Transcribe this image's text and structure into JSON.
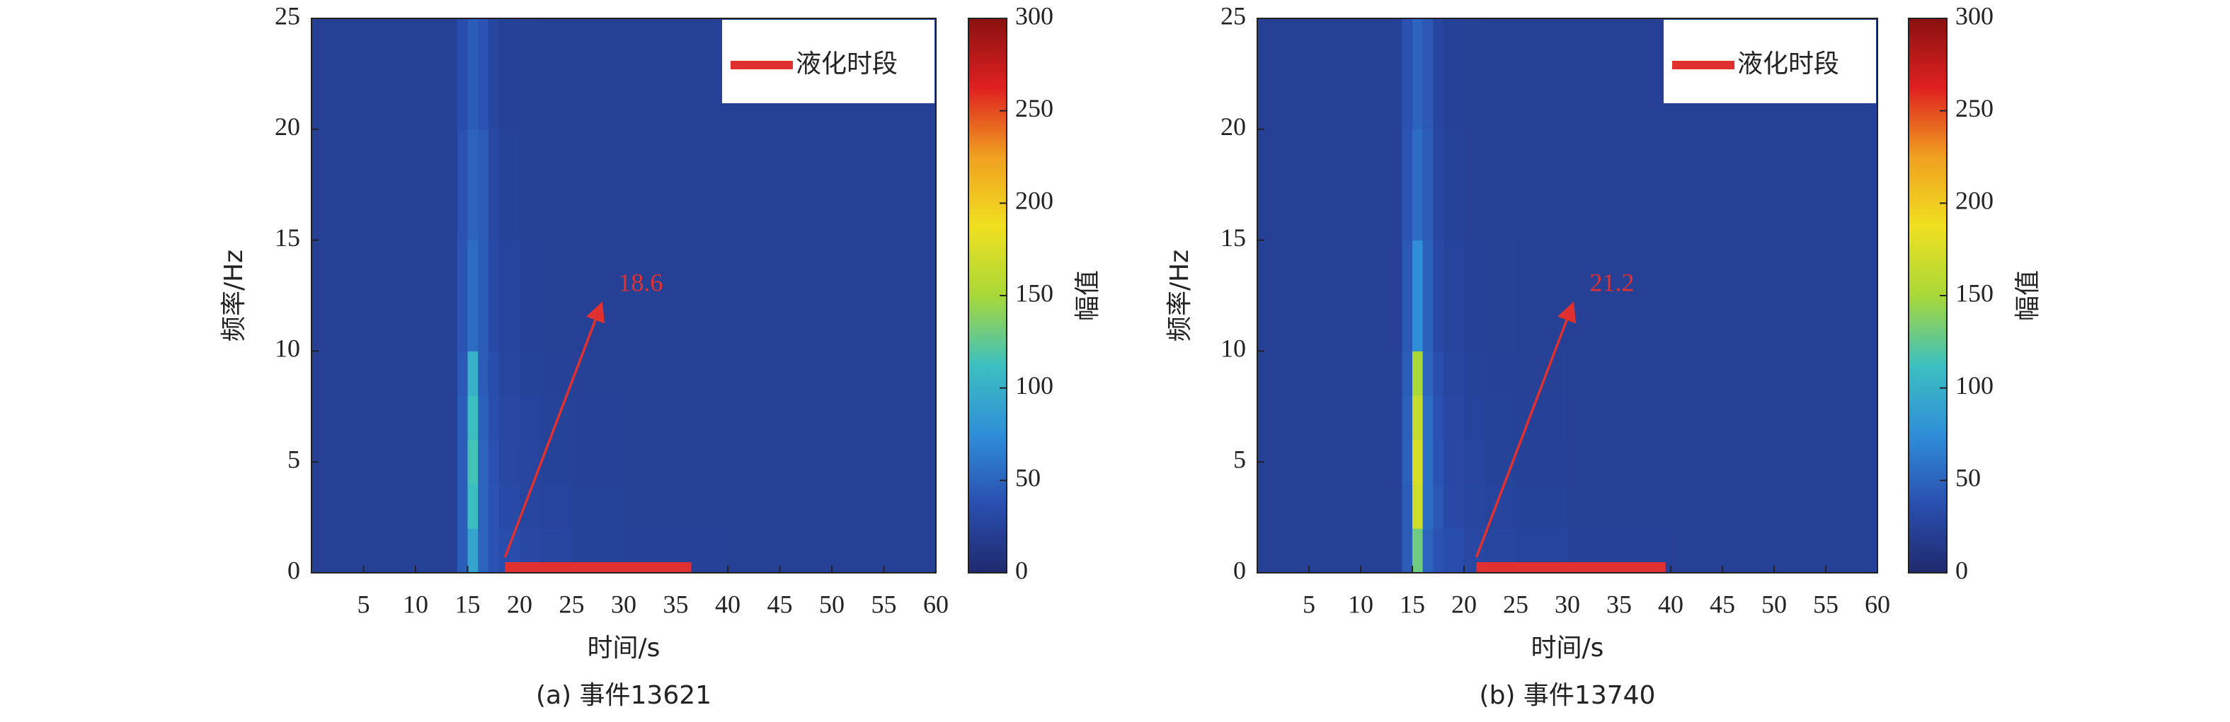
{
  "chart_data": [
    {
      "type": "heatmap",
      "caption": "(a) 事件13621",
      "xlabel": "时间/s",
      "ylabel": "频率/Hz",
      "xlim": [
        0,
        60
      ],
      "ylim": [
        0,
        25
      ],
      "xticks": [
        5,
        10,
        15,
        20,
        25,
        30,
        35,
        40,
        45,
        50,
        55,
        60
      ],
      "yticks": [
        0,
        5,
        10,
        15,
        20,
        25
      ],
      "x_edges": [
        0,
        14,
        15,
        16,
        17,
        18,
        20,
        22,
        25,
        30,
        40,
        60
      ],
      "y_edges": [
        0,
        2,
        4,
        6,
        8,
        10,
        15,
        20,
        25
      ],
      "z": [
        [
          22,
          45,
          90,
          50,
          40,
          35,
          30,
          28,
          25,
          24,
          22
        ],
        [
          22,
          45,
          110,
          50,
          40,
          32,
          28,
          26,
          25,
          23,
          22
        ],
        [
          22,
          45,
          115,
          50,
          38,
          30,
          27,
          25,
          24,
          23,
          22
        ],
        [
          22,
          45,
          110,
          48,
          36,
          30,
          26,
          25,
          24,
          22,
          22
        ],
        [
          22,
          42,
          100,
          45,
          35,
          28,
          25,
          24,
          23,
          22,
          22
        ],
        [
          22,
          40,
          55,
          45,
          32,
          26,
          24,
          23,
          22,
          22,
          22
        ],
        [
          22,
          38,
          50,
          45,
          30,
          25,
          23,
          22,
          22,
          22,
          22
        ],
        [
          22,
          35,
          45,
          40,
          28,
          24,
          23,
          22,
          22,
          22,
          22
        ]
      ],
      "colormap": [
        "#1f2a6e",
        "#2a4fb0",
        "#2f8fd8",
        "#3cc0c0",
        "#a8d838",
        "#f0e020",
        "#f0a020",
        "#e02020",
        "#8a1010"
      ],
      "colorbar": {
        "label": "幅值",
        "lim": [
          0,
          300
        ],
        "ticks": [
          0,
          50,
          100,
          150,
          200,
          250,
          300
        ]
      },
      "legend": {
        "label": "液化时段",
        "color": "#e03030",
        "loc": "upper right"
      },
      "liquefaction_start": {
        "value": 18.6,
        "label": "18.6"
      },
      "liquefaction_end": 36.5
    },
    {
      "type": "heatmap",
      "caption": "(b) 事件13740",
      "xlabel": "时间/s",
      "ylabel": "频率/Hz",
      "xlim": [
        0,
        60
      ],
      "ylim": [
        0,
        25
      ],
      "xticks": [
        5,
        10,
        15,
        20,
        25,
        30,
        35,
        40,
        45,
        50,
        55,
        60
      ],
      "yticks": [
        0,
        5,
        10,
        15,
        20,
        25
      ],
      "x_edges": [
        0,
        14,
        15,
        16,
        17,
        18,
        20,
        22,
        25,
        30,
        40,
        60
      ],
      "y_edges": [
        0,
        2,
        4,
        6,
        8,
        10,
        15,
        20,
        25
      ],
      "z": [
        [
          22,
          45,
          130,
          50,
          40,
          35,
          30,
          28,
          26,
          24,
          22
        ],
        [
          22,
          45,
          170,
          55,
          42,
          32,
          28,
          26,
          25,
          23,
          22
        ],
        [
          22,
          48,
          175,
          55,
          40,
          30,
          27,
          25,
          24,
          23,
          22
        ],
        [
          22,
          48,
          165,
          55,
          38,
          30,
          26,
          25,
          24,
          22,
          22
        ],
        [
          22,
          45,
          150,
          50,
          36,
          28,
          25,
          24,
          23,
          22,
          22
        ],
        [
          22,
          42,
          75,
          48,
          32,
          26,
          24,
          23,
          22,
          22,
          22
        ],
        [
          22,
          40,
          55,
          45,
          30,
          25,
          23,
          22,
          22,
          22,
          22
        ],
        [
          22,
          38,
          50,
          42,
          28,
          24,
          23,
          22,
          22,
          22,
          22
        ]
      ],
      "colormap": [
        "#1f2a6e",
        "#2a4fb0",
        "#2f8fd8",
        "#3cc0c0",
        "#a8d838",
        "#f0e020",
        "#f0a020",
        "#e02020",
        "#8a1010"
      ],
      "colorbar": {
        "label": "幅值",
        "lim": [
          0,
          300
        ],
        "ticks": [
          0,
          50,
          100,
          150,
          200,
          250,
          300
        ]
      },
      "legend": {
        "label": "液化时段",
        "color": "#e03030",
        "loc": "upper right"
      },
      "liquefaction_start": {
        "value": 21.2,
        "label": "21.2"
      },
      "liquefaction_end": 39.5
    }
  ]
}
